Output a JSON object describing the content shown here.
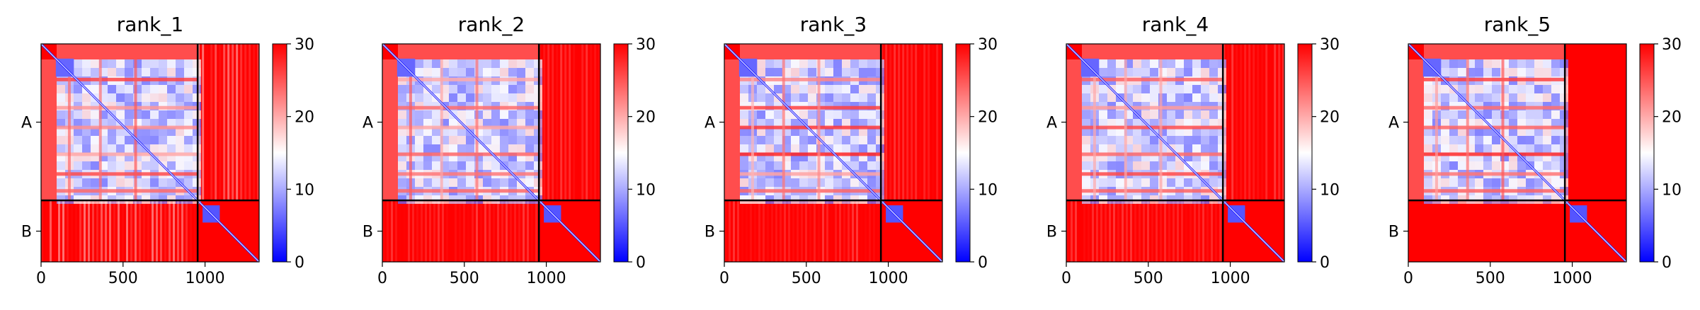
{
  "chart_data": [
    {
      "type": "heatmap",
      "title": "rank_1",
      "xlabel": "",
      "ylabel": "",
      "x_ticks": [
        0,
        500,
        1000
      ],
      "xlim": [
        0,
        1330
      ],
      "chain_labels": [
        "A",
        "B"
      ],
      "chain_boundary": 955,
      "colorbar": {
        "min": 0,
        "max": 30,
        "ticks": [
          0,
          10,
          20,
          30
        ],
        "colors": [
          "#0000ff",
          "#ffffff",
          "#ff0000"
        ]
      },
      "inter_chain_pattern": "pale"
    },
    {
      "type": "heatmap",
      "title": "rank_2",
      "xlabel": "",
      "ylabel": "",
      "x_ticks": [
        0,
        500,
        1000
      ],
      "xlim": [
        0,
        1330
      ],
      "chain_labels": [
        "A",
        "B"
      ],
      "chain_boundary": 955,
      "colorbar": {
        "min": 0,
        "max": 30,
        "ticks": [
          0,
          10,
          20,
          30
        ],
        "colors": [
          "#0000ff",
          "#ffffff",
          "#ff0000"
        ]
      },
      "inter_chain_pattern": "faint"
    },
    {
      "type": "heatmap",
      "title": "rank_3",
      "xlabel": "",
      "ylabel": "",
      "x_ticks": [
        0,
        500,
        1000
      ],
      "xlim": [
        0,
        1330
      ],
      "chain_labels": [
        "A",
        "B"
      ],
      "chain_boundary": 955,
      "colorbar": {
        "min": 0,
        "max": 30,
        "ticks": [
          0,
          10,
          20,
          30
        ],
        "colors": [
          "#0000ff",
          "#ffffff",
          "#ff0000"
        ]
      },
      "inter_chain_pattern": "faint"
    },
    {
      "type": "heatmap",
      "title": "rank_4",
      "xlabel": "",
      "ylabel": "",
      "x_ticks": [
        0,
        500,
        1000
      ],
      "xlim": [
        0,
        1330
      ],
      "chain_labels": [
        "A",
        "B"
      ],
      "chain_boundary": 955,
      "colorbar": {
        "min": 0,
        "max": 30,
        "ticks": [
          0,
          10,
          20,
          30
        ],
        "colors": [
          "#0000ff",
          "#ffffff",
          "#ff0000"
        ]
      },
      "inter_chain_pattern": "faint"
    },
    {
      "type": "heatmap",
      "title": "rank_5",
      "xlabel": "",
      "ylabel": "",
      "x_ticks": [
        0,
        500,
        1000
      ],
      "xlim": [
        0,
        1330
      ],
      "chain_labels": [
        "A",
        "B"
      ],
      "chain_boundary": 955,
      "colorbar": {
        "min": 0,
        "max": 30,
        "ticks": [
          0,
          10,
          20,
          30
        ],
        "colors": [
          "#0000ff",
          "#ffffff",
          "#ff0000"
        ]
      },
      "inter_chain_pattern": "none"
    }
  ]
}
